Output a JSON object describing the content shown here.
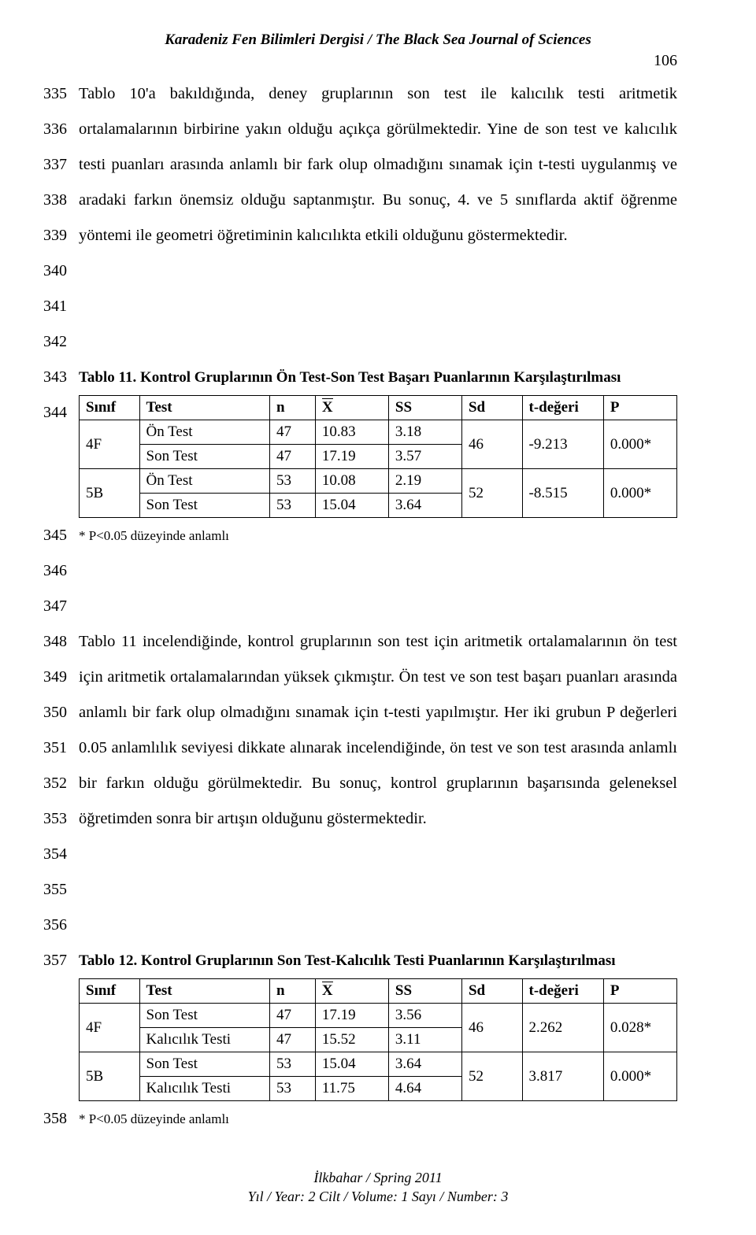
{
  "header": {
    "journal": "Karadeniz Fen Bilimleri Dergisi / The Black Sea Journal of Sciences",
    "pagenum": "106"
  },
  "line_numbers_block1": [
    "335",
    "336",
    "337",
    "338",
    "339",
    "340",
    "341",
    "342",
    "343",
    "344"
  ],
  "para1": "Tablo 10'a bakıldığında, deney gruplarının son test ile kalıcılık testi aritmetik ortalamalarının birbirine yakın olduğu açıkça görülmektedir. Yine de son test ve kalıcılık testi puanları arasında anlamlı bir fark olup olmadığını sınamak için t-testi uygulanmış ve aradaki farkın önemsiz olduğu saptanmıştır. Bu sonuç, 4. ve 5 sınıflarda aktif öğrenme yöntemi ile geometri öğretiminin kalıcılıkta etkili olduğunu göstermektedir.",
  "table11": {
    "caption": "Tablo 11. Kontrol Gruplarının Ön Test-Son Test Başarı Puanlarının Karşılaştırılması",
    "columns": [
      "Sınıf",
      "Test",
      "n",
      "X",
      "SS",
      "Sd",
      "t-değeri",
      "P"
    ],
    "rows": [
      {
        "sinif": "",
        "test": "Ön Test",
        "n": "47",
        "x": "10.83",
        "ss": "3.18",
        "sd": "",
        "t": "",
        "p": ""
      },
      {
        "sinif": "4F",
        "test": "Son Test",
        "n": "47",
        "x": "17.19",
        "ss": "3.57",
        "sd": "46",
        "t": "-9.213",
        "p": "0.000*"
      },
      {
        "sinif": "",
        "test": "Ön Test",
        "n": "53",
        "x": "10.08",
        "ss": "2.19",
        "sd": "",
        "t": "",
        "p": ""
      },
      {
        "sinif": "5B",
        "test": "Son Test",
        "n": "53",
        "x": "15.04",
        "ss": "3.64",
        "sd": "52",
        "t": "-8.515",
        "p": "0.000*"
      }
    ],
    "footnote": "* P<0.05 düzeyinde anlamlı"
  },
  "line_numbers_block2": [
    "345",
    "346",
    "347",
    "348",
    "349",
    "350",
    "351",
    "352",
    "353",
    "354",
    "355",
    "356",
    "357"
  ],
  "para2": "Tablo 11 incelendiğinde, kontrol gruplarının son test için aritmetik ortalamalarının ön test için aritmetik ortalamalarından yüksek çıkmıştır. Ön test ve son test başarı puanları arasında anlamlı bir fark olup olmadığını sınamak için t-testi yapılmıştır. Her iki grubun P değerleri 0.05 anlamlılık seviyesi dikkate alınarak incelendiğinde, ön test ve son test arasında anlamlı bir farkın olduğu görülmektedir. Bu sonuç, kontrol gruplarının başarısında geleneksel öğretimden sonra bir artışın olduğunu göstermektedir.",
  "table12": {
    "caption": "Tablo 12. Kontrol Gruplarının Son Test-Kalıcılık Testi Puanlarının Karşılaştırılması",
    "columns": [
      "Sınıf",
      "Test",
      "n",
      "X",
      "SS",
      "Sd",
      "t-değeri",
      "P"
    ],
    "rows": [
      {
        "sinif": "",
        "test": "Son Test",
        "n": "47",
        "x": "17.19",
        "ss": "3.56",
        "sd": "",
        "t": "",
        "p": ""
      },
      {
        "sinif": "4F",
        "test": "Kalıcılık Testi",
        "n": "47",
        "x": "15.52",
        "ss": "3.11",
        "sd": "46",
        "t": "2.262",
        "p": "0.028*"
      },
      {
        "sinif": "",
        "test": "Son Test",
        "n": "53",
        "x": "15.04",
        "ss": "3.64",
        "sd": "",
        "t": "",
        "p": ""
      },
      {
        "sinif": "5B",
        "test": "Kalıcılık Testi",
        "n": "53",
        "x": "11.75",
        "ss": "4.64",
        "sd": "52",
        "t": "3.817",
        "p": "0.000*"
      }
    ],
    "footnote": "* P<0.05 düzeyinde anlamlı"
  },
  "ln_358": "358",
  "footer": {
    "line1": "İlkbahar / Spring 2011",
    "line2": "Yıl / Year: 2  Cilt / Volume: 1  Sayı / Number: 3"
  }
}
